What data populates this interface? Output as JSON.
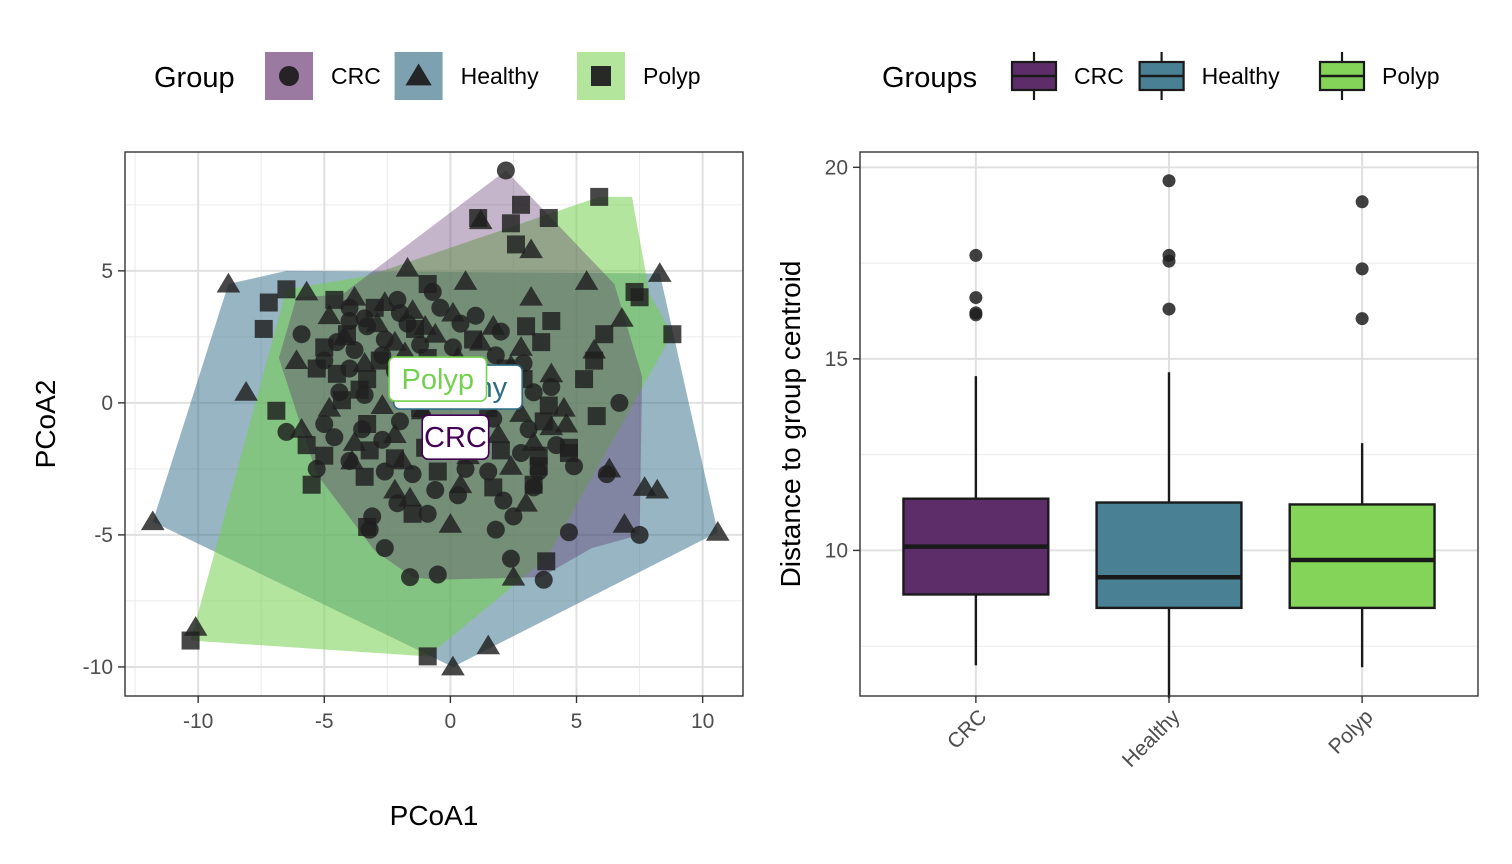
{
  "chart_data": [
    {
      "type": "scatter",
      "xlabel": "PCoA1",
      "ylabel": "PCoA2",
      "xlim": [
        -12.9,
        11.6
      ],
      "ylim": [
        -11.1,
        9.5
      ],
      "xticks": [
        "-10",
        "-5",
        "0",
        "5",
        "10"
      ],
      "xtick_values": [
        -10,
        -5,
        0,
        5,
        10
      ],
      "yticks": [
        "-10",
        "-5",
        "0",
        "5"
      ],
      "ytick_values": [
        -10,
        -5,
        0,
        5
      ],
      "grid": true,
      "legend": {
        "title": "Group",
        "placement": "top",
        "entries": [
          {
            "label": "CRC",
            "shape": "circle",
            "fill": "#9b7aa1"
          },
          {
            "label": "Healthy",
            "shape": "triangle",
            "fill": "#7da1b1"
          },
          {
            "label": "Polyp",
            "shape": "square",
            "fill": "#b4e59c"
          }
        ]
      },
      "hulls": [
        {
          "name": "Healthy",
          "color": "#2f6c86",
          "opacity": 0.5,
          "points": [
            [
              -8.8,
              4.5
            ],
            [
              -6.5,
              5.0
            ],
            [
              8.3,
              4.9
            ],
            [
              10.6,
              -4.9
            ],
            [
              0.1,
              -10.0
            ],
            [
              -11.8,
              -4.5
            ]
          ]
        },
        {
          "name": "Polyp",
          "color": "#74d04f",
          "opacity": 0.55,
          "points": [
            [
              -6.5,
              4.3
            ],
            [
              -3.3,
              4.8
            ],
            [
              5.9,
              7.8
            ],
            [
              7.2,
              7.8
            ],
            [
              7.9,
              4.1
            ],
            [
              8.8,
              2.6
            ],
            [
              3.8,
              -5.9
            ],
            [
              -0.9,
              -9.6
            ],
            [
              -10.3,
              -9.0
            ]
          ]
        },
        {
          "name": "CRC",
          "color": "#5a2c68",
          "opacity": 0.35,
          "points": [
            [
              2.2,
              8.8
            ],
            [
              6.5,
              4.5
            ],
            [
              7.6,
              1.0
            ],
            [
              7.5,
              -5.0
            ],
            [
              5.6,
              -5.5
            ],
            [
              3.6,
              -6.6
            ],
            [
              -0.6,
              -6.7
            ],
            [
              -1.5,
              -6.6
            ],
            [
              -3.0,
              -5.6
            ],
            [
              -5.3,
              -2.7
            ],
            [
              -6.8,
              1.7
            ],
            [
              -6.1,
              4.0
            ],
            [
              -4.3,
              4.1
            ]
          ]
        }
      ],
      "series": [
        {
          "name": "CRC",
          "shape": "circle",
          "color": "#1f1f1f",
          "points": [
            [
              2.2,
              8.8
            ],
            [
              -2.1,
              3.9
            ],
            [
              -0.7,
              4.2
            ],
            [
              -4.0,
              3.6
            ],
            [
              -3.4,
              3.2
            ],
            [
              -2.0,
              3.4
            ],
            [
              -0.4,
              3.6
            ],
            [
              1.0,
              3.3
            ],
            [
              -3.3,
              2.9
            ],
            [
              -1.7,
              3.0
            ],
            [
              0.4,
              3.0
            ],
            [
              2.0,
              2.7
            ],
            [
              -5.9,
              2.6
            ],
            [
              -4.5,
              2.3
            ],
            [
              -3.8,
              2.0
            ],
            [
              -2.7,
              1.8
            ],
            [
              -1.2,
              2.2
            ],
            [
              0.1,
              2.1
            ],
            [
              1.8,
              1.8
            ],
            [
              2.9,
              1.5
            ],
            [
              -5.0,
              1.6
            ],
            [
              -4.0,
              1.3
            ],
            [
              -2.2,
              1.2
            ],
            [
              -0.4,
              1.4
            ],
            [
              1.4,
              0.9
            ],
            [
              3.3,
              0.4
            ],
            [
              -4.4,
              0.4
            ],
            [
              -3.4,
              0.3
            ],
            [
              -1.5,
              0.4
            ],
            [
              0.7,
              0.5
            ],
            [
              2.5,
              0.2
            ],
            [
              4.0,
              0.6
            ],
            [
              -5.0,
              -0.8
            ],
            [
              -3.5,
              -1.0
            ],
            [
              -2.0,
              -0.7
            ],
            [
              0.0,
              -0.8
            ],
            [
              1.7,
              -0.6
            ],
            [
              3.1,
              -1.0
            ],
            [
              6.7,
              0.0
            ],
            [
              -6.5,
              -1.1
            ],
            [
              -4.6,
              -1.3
            ],
            [
              -2.7,
              -1.4
            ],
            [
              -0.7,
              -1.5
            ],
            [
              1.2,
              -1.6
            ],
            [
              2.8,
              -1.9
            ],
            [
              4.2,
              -1.6
            ],
            [
              -5.3,
              -2.5
            ],
            [
              -4.0,
              -2.2
            ],
            [
              -2.6,
              -2.6
            ],
            [
              -1.5,
              -2.7
            ],
            [
              0.6,
              -2.5
            ],
            [
              1.5,
              -2.6
            ],
            [
              3.5,
              -2.6
            ],
            [
              4.9,
              -2.4
            ],
            [
              -2.1,
              -3.8
            ],
            [
              -0.6,
              -3.3
            ],
            [
              0.3,
              -3.5
            ],
            [
              2.1,
              -3.7
            ],
            [
              3.3,
              -3.2
            ],
            [
              -3.1,
              -4.3
            ],
            [
              -0.9,
              -4.2
            ],
            [
              1.8,
              -4.8
            ],
            [
              2.5,
              -4.3
            ],
            [
              -3.2,
              -4.8
            ],
            [
              4.7,
              -4.9
            ],
            [
              7.5,
              -5.0
            ],
            [
              6.2,
              -2.7
            ],
            [
              -2.6,
              -5.5
            ],
            [
              2.4,
              -5.9
            ],
            [
              -1.6,
              -6.6
            ],
            [
              -0.5,
              -6.5
            ],
            [
              3.7,
              -6.7
            ],
            [
              -4.0,
              3.1
            ],
            [
              -2.6,
              2.4
            ]
          ]
        },
        {
          "name": "Healthy",
          "shape": "triangle",
          "color": "#1f1f1f",
          "points": [
            [
              -8.8,
              4.5
            ],
            [
              1.2,
              6.9
            ],
            [
              3.2,
              5.8
            ],
            [
              -1.7,
              5.1
            ],
            [
              0.6,
              4.6
            ],
            [
              5.4,
              4.6
            ],
            [
              8.3,
              4.9
            ],
            [
              -5.7,
              4.2
            ],
            [
              -3.8,
              4.0
            ],
            [
              -2.6,
              3.8
            ],
            [
              -1.5,
              3.5
            ],
            [
              0.1,
              3.4
            ],
            [
              3.2,
              4.0
            ],
            [
              -4.8,
              3.3
            ],
            [
              -2.9,
              3.0
            ],
            [
              -1.0,
              2.9
            ],
            [
              1.7,
              2.9
            ],
            [
              6.8,
              3.2
            ],
            [
              -4.2,
              2.5
            ],
            [
              -2.2,
              2.3
            ],
            [
              -0.6,
              2.6
            ],
            [
              1.2,
              2.3
            ],
            [
              2.8,
              2.1
            ],
            [
              5.7,
              2.0
            ],
            [
              -6.1,
              1.6
            ],
            [
              -3.4,
              1.5
            ],
            [
              -1.8,
              1.9
            ],
            [
              0.3,
              1.7
            ],
            [
              2.4,
              1.4
            ],
            [
              4.0,
              1.1
            ],
            [
              -8.1,
              0.4
            ],
            [
              -4.8,
              -0.2
            ],
            [
              -2.7,
              -0.1
            ],
            [
              -1.1,
              -0.3
            ],
            [
              1.0,
              0.1
            ],
            [
              2.8,
              -0.4
            ],
            [
              4.5,
              -0.2
            ],
            [
              -5.9,
              -1.0
            ],
            [
              -3.8,
              -1.5
            ],
            [
              -2.2,
              -1.2
            ],
            [
              -0.2,
              -1.0
            ],
            [
              1.9,
              -1.2
            ],
            [
              3.3,
              -1.5
            ],
            [
              4.6,
              -0.8
            ],
            [
              -3.9,
              -2.2
            ],
            [
              -1.9,
              -2.2
            ],
            [
              0.7,
              -2.0
            ],
            [
              2.4,
              -2.4
            ],
            [
              6.3,
              -2.5
            ],
            [
              -2.2,
              -3.3
            ],
            [
              0.4,
              -3.1
            ],
            [
              3.0,
              -3.8
            ],
            [
              7.7,
              -3.2
            ],
            [
              8.2,
              -3.3
            ],
            [
              -1.6,
              -3.6
            ],
            [
              0.0,
              -4.6
            ],
            [
              6.9,
              -4.6
            ],
            [
              10.6,
              -4.9
            ],
            [
              -11.8,
              -4.5
            ],
            [
              2.5,
              -6.6
            ],
            [
              -10.1,
              -8.5
            ],
            [
              1.5,
              -9.2
            ],
            [
              0.1,
              -10.0
            ],
            [
              4.0,
              -0.9
            ]
          ]
        },
        {
          "name": "Polyp",
          "shape": "square",
          "color": "#1f1f1f",
          "points": [
            [
              5.9,
              7.8
            ],
            [
              2.8,
              7.5
            ],
            [
              3.9,
              7.0
            ],
            [
              1.1,
              7.0
            ],
            [
              2.4,
              6.8
            ],
            [
              2.6,
              6.0
            ],
            [
              -0.9,
              4.5
            ],
            [
              7.3,
              4.2
            ],
            [
              7.5,
              4.0
            ],
            [
              -6.5,
              4.3
            ],
            [
              -7.2,
              3.8
            ],
            [
              -4.6,
              3.9
            ],
            [
              -3.0,
              3.6
            ],
            [
              -7.4,
              2.8
            ],
            [
              -4.1,
              2.6
            ],
            [
              -1.4,
              2.8
            ],
            [
              0.9,
              2.4
            ],
            [
              3.0,
              2.9
            ],
            [
              4.0,
              3.1
            ],
            [
              6.1,
              2.6
            ],
            [
              8.8,
              2.6
            ],
            [
              -5.0,
              2.1
            ],
            [
              -2.8,
              1.6
            ],
            [
              -0.9,
              1.7
            ],
            [
              2.2,
              1.3
            ],
            [
              3.6,
              2.3
            ],
            [
              5.7,
              1.6
            ],
            [
              -4.5,
              1.1
            ],
            [
              -3.3,
              0.9
            ],
            [
              -5.3,
              1.3
            ],
            [
              -2.0,
              0.5
            ],
            [
              0.4,
              0.9
            ],
            [
              2.9,
              0.9
            ],
            [
              5.3,
              0.9
            ],
            [
              -4.3,
              0.1
            ],
            [
              -3.6,
              0.5
            ],
            [
              -1.2,
              -0.2
            ],
            [
              1.5,
              -0.2
            ],
            [
              3.9,
              -0.1
            ],
            [
              -6.9,
              -0.3
            ],
            [
              -3.3,
              -0.8
            ],
            [
              0.8,
              -0.8
            ],
            [
              3.7,
              -0.7
            ],
            [
              5.8,
              -0.5
            ],
            [
              -5.7,
              -1.6
            ],
            [
              -3.2,
              -1.8
            ],
            [
              -1.0,
              -1.7
            ],
            [
              2.0,
              -1.8
            ],
            [
              4.7,
              -1.9
            ],
            [
              -5.0,
              -2.0
            ],
            [
              -2.2,
              -2.1
            ],
            [
              3.5,
              -2.4
            ],
            [
              -5.5,
              -3.1
            ],
            [
              -3.4,
              -2.8
            ],
            [
              -0.5,
              -2.6
            ],
            [
              1.7,
              -3.2
            ],
            [
              3.5,
              -2.0
            ],
            [
              4.7,
              -1.7
            ],
            [
              -1.5,
              -4.2
            ],
            [
              -3.3,
              -4.7
            ],
            [
              3.3,
              -3.1
            ],
            [
              3.8,
              -6.0
            ],
            [
              -0.9,
              -9.6
            ],
            [
              -10.3,
              -9.0
            ]
          ]
        }
      ],
      "labels": [
        {
          "text": "Healthy",
          "x": 0.3,
          "y": 0.6,
          "color": "#2f6c86"
        },
        {
          "text": "Polyp",
          "x": -0.5,
          "y": 0.9,
          "color": "#74d04f"
        },
        {
          "text": "CRC",
          "x": 0.2,
          "y": -1.3,
          "color": "#440154"
        }
      ]
    },
    {
      "type": "box",
      "xlabel": "",
      "ylabel": "Distance to group centroid",
      "ylim": [
        6.2,
        20.4
      ],
      "yticks": [
        "10",
        "15",
        "20"
      ],
      "ytick_values": [
        10,
        15,
        20
      ],
      "grid": true,
      "categories": [
        "CRC",
        "Healthy",
        "Polyp"
      ],
      "legend": {
        "title": "Groups",
        "placement": "top",
        "entries": [
          {
            "label": "CRC",
            "fill": "#5c2d68"
          },
          {
            "label": "Healthy",
            "fill": "#4a8093"
          },
          {
            "label": "Polyp",
            "fill": "#84d45a"
          }
        ]
      },
      "boxes": [
        {
          "name": "CRC",
          "fill": "#5c2d68",
          "min": 7.0,
          "q1": 8.85,
          "median": 10.1,
          "q3": 11.35,
          "max": 14.55,
          "outliers": [
            17.7,
            16.6,
            16.2,
            16.15
          ]
        },
        {
          "name": "Healthy",
          "fill": "#4a8093",
          "min": 6.15,
          "q1": 8.5,
          "median": 9.3,
          "q3": 11.25,
          "max": 14.65,
          "outliers": [
            19.65,
            17.7,
            17.55,
            16.3
          ]
        },
        {
          "name": "Polyp",
          "fill": "#84d45a",
          "min": 6.95,
          "q1": 8.5,
          "median": 9.75,
          "q3": 11.2,
          "max": 12.8,
          "outliers": [
            19.1,
            17.35,
            16.05
          ]
        }
      ]
    }
  ]
}
